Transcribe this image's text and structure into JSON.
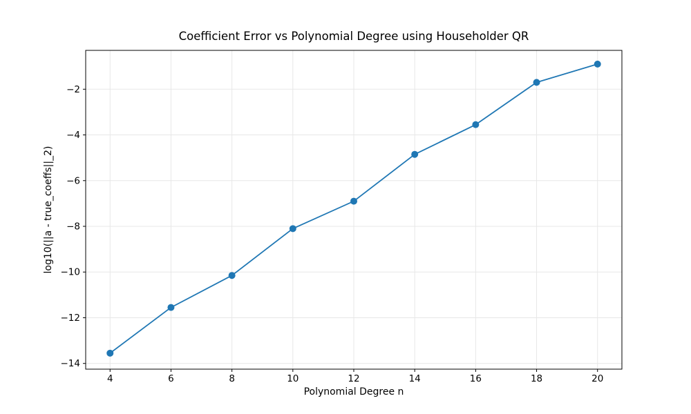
{
  "figure": {
    "background": "#ffffff"
  },
  "chart_data": {
    "type": "line",
    "title": "Coefficient Error vs Polynomial Degree using Householder QR",
    "xlabel": "Polynomial Degree n",
    "ylabel": "log10(||a - true_coeffs||_2)",
    "x": [
      4,
      6,
      8,
      10,
      12,
      14,
      16,
      18,
      20
    ],
    "y": [
      -13.55,
      -11.55,
      -10.15,
      -8.1,
      -6.9,
      -4.85,
      -3.55,
      -1.7,
      -0.9
    ],
    "xticks": [
      4,
      6,
      8,
      10,
      12,
      14,
      16,
      18,
      20
    ],
    "yticks": [
      -14,
      -12,
      -10,
      -8,
      -6,
      -4,
      -2
    ],
    "xlim": [
      3.2,
      20.8
    ],
    "ylim": [
      -14.25,
      -0.3
    ],
    "grid": true,
    "legend": null,
    "line_color": "#1f77b4",
    "marker": "circle",
    "grid_color": "#e7e7e7",
    "spine_color": "#000000"
  }
}
